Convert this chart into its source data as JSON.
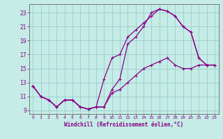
{
  "xlabel": "Windchill (Refroidissement éolien,°C)",
  "bg_color": "#c5ece6",
  "line_color": "#880088",
  "grid_color": "#99cccc",
  "spine_color": "#666666",
  "xlim": [
    -0.5,
    23.5
  ],
  "ylim": [
    8.5,
    24.2
  ],
  "xticks": [
    0,
    1,
    2,
    3,
    4,
    5,
    6,
    7,
    8,
    9,
    10,
    11,
    12,
    13,
    14,
    15,
    16,
    17,
    18,
    19,
    20,
    21,
    22,
    23
  ],
  "yticks": [
    9,
    11,
    13,
    15,
    17,
    19,
    21,
    23
  ],
  "line1_x": [
    0,
    1,
    2,
    3,
    4,
    5,
    6,
    7,
    8,
    9,
    10,
    11,
    12,
    13,
    14,
    15,
    16,
    17,
    18,
    19,
    20,
    21,
    22,
    23
  ],
  "line1_y": [
    12.5,
    11.0,
    10.5,
    9.5,
    10.5,
    10.5,
    9.5,
    9.2,
    9.5,
    9.5,
    12.0,
    13.5,
    18.5,
    19.5,
    21.0,
    23.0,
    23.5,
    23.2,
    22.5,
    21.0,
    20.2,
    16.5,
    15.5,
    15.5
  ],
  "line2_x": [
    0,
    1,
    2,
    3,
    4,
    5,
    6,
    7,
    8,
    9,
    10,
    11,
    12,
    13,
    14,
    15,
    16,
    17,
    18,
    19,
    20,
    21,
    22,
    23
  ],
  "line2_y": [
    12.5,
    11.0,
    10.5,
    9.5,
    10.5,
    10.5,
    9.5,
    9.2,
    9.5,
    13.5,
    16.5,
    17.0,
    19.5,
    20.5,
    21.5,
    22.5,
    23.5,
    23.2,
    22.5,
    21.0,
    20.2,
    16.5,
    15.5,
    15.5
  ],
  "line3_x": [
    0,
    1,
    2,
    3,
    4,
    5,
    6,
    7,
    8,
    9,
    10,
    11,
    12,
    13,
    14,
    15,
    16,
    17,
    18,
    19,
    20,
    21,
    22,
    23
  ],
  "line3_y": [
    12.5,
    11.0,
    10.5,
    9.5,
    10.5,
    10.5,
    9.5,
    9.2,
    9.5,
    9.5,
    11.5,
    12.0,
    13.0,
    14.0,
    15.0,
    15.5,
    16.0,
    16.5,
    15.5,
    15.0,
    15.0,
    15.5,
    15.5,
    15.5
  ]
}
